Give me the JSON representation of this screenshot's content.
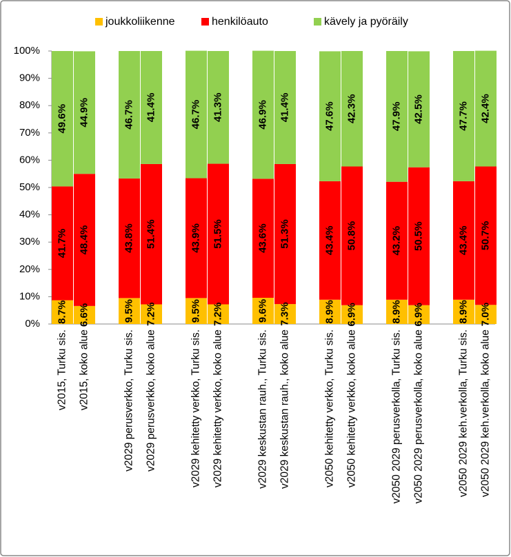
{
  "chart_data": {
    "type": "stacked_bar",
    "categories": [
      "v2015, Turku sis.",
      "v2015, koko alue",
      "v2029 perusverkko, Turku sis.",
      "v2029 perusverkko, koko alue",
      "v2029 kehitetty verkko, Turku sis.",
      "v2029 kehitetty verkko, koko alue",
      "v2029 keskustan rauh., Turku sis.",
      "v2029 keskustan rauh., koko alue",
      "v2050 kehitetty verkko, Turku sis.",
      "v2050 kehitetty verkko, koko alue",
      "v2050 2029 perusverkolla, Turku sis.",
      "v2050 2029 perusverkolla, koko alue",
      "v2050 2029 keh.verkolla, Turku sis.",
      "v2050 2029 keh.verkolla, koko alue"
    ],
    "series": [
      {
        "name": "joukkoliikenne",
        "color": "#ffc000",
        "values": [
          8.7,
          6.6,
          9.5,
          7.2,
          9.5,
          7.2,
          9.6,
          7.3,
          8.9,
          6.9,
          8.9,
          6.9,
          8.9,
          7.0
        ],
        "value_labels": [
          "8.7%",
          "6.6%",
          "9.5%",
          "7.2%",
          "9.5%",
          "7.2%",
          "9.6%",
          "7.3%",
          "8.9%",
          "6.9%",
          "8.9%",
          "6.9%",
          "8.9%",
          "7.0%"
        ]
      },
      {
        "name": "henkilöauto",
        "color": "#ff0000",
        "values": [
          41.7,
          48.4,
          43.8,
          51.4,
          43.9,
          51.5,
          43.6,
          51.3,
          43.4,
          50.8,
          43.2,
          50.5,
          43.4,
          50.7
        ],
        "value_labels": [
          "41.7%",
          "48.4%",
          "43.8%",
          "51.4%",
          "43.9%",
          "51.5%",
          "43.6%",
          "51.3%",
          "43.4%",
          "50.8%",
          "43.2%",
          "50.5%",
          "43.4%",
          "50.7%"
        ]
      },
      {
        "name": "kävely ja pyöräily",
        "color": "#92d050",
        "values": [
          49.6,
          44.9,
          46.7,
          41.4,
          46.7,
          41.3,
          46.9,
          41.4,
          47.6,
          42.3,
          47.9,
          42.5,
          47.7,
          42.4
        ],
        "value_labels": [
          "49.6%",
          "44.9%",
          "46.7%",
          "41.4%",
          "46.7%",
          "41.3%",
          "46.9%",
          "41.4%",
          "47.6%",
          "42.3%",
          "47.9%",
          "42.5%",
          "47.7%",
          "42.4%"
        ]
      }
    ],
    "ylim": [
      0,
      100
    ],
    "yticks": [
      {
        "value": 0,
        "label": "0%"
      },
      {
        "value": 10,
        "label": "10%"
      },
      {
        "value": 20,
        "label": "20%"
      },
      {
        "value": 30,
        "label": "30%"
      },
      {
        "value": 40,
        "label": "40%"
      },
      {
        "value": 50,
        "label": "50%"
      },
      {
        "value": 60,
        "label": "60%"
      },
      {
        "value": 70,
        "label": "70%"
      },
      {
        "value": 80,
        "label": "80%"
      },
      {
        "value": 90,
        "label": "90%"
      },
      {
        "value": 100,
        "label": "100%"
      }
    ],
    "grid": false,
    "legend": "top"
  }
}
